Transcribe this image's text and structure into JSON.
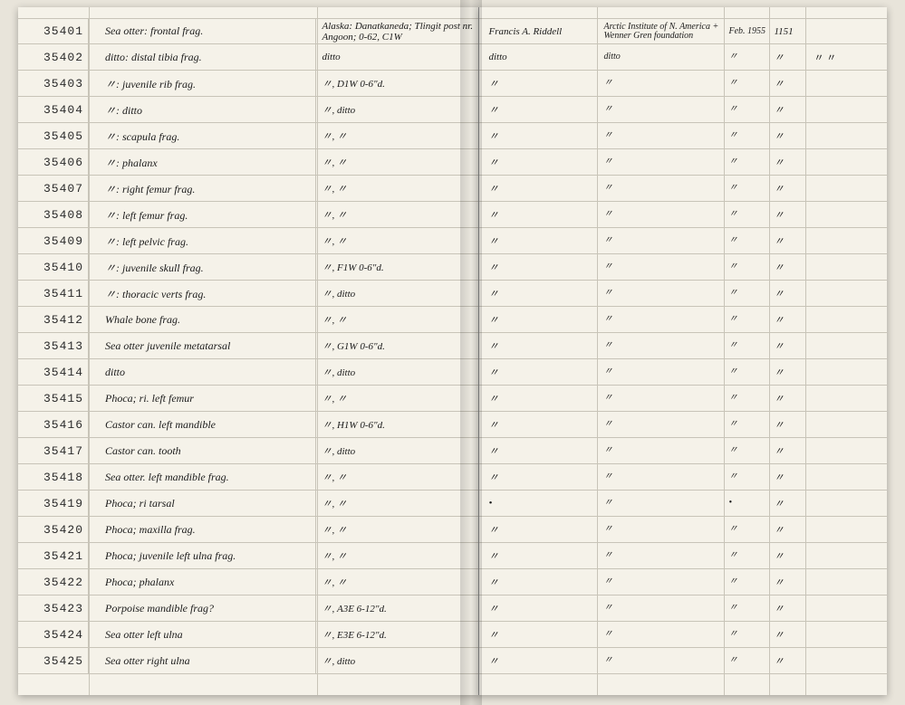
{
  "rows": [
    {
      "id": "35401",
      "desc": "Sea otter: frontal frag.",
      "loc": "Alaska: Danatkaneda; Tlingit post nr. Angoon; 0-62, C1W",
      "collector": "Francis A. Riddell",
      "inst": "Arctic Institute of N. America + Wenner Gren foundation",
      "date": "Feb. 1955",
      "num": "1151",
      "end": ""
    },
    {
      "id": "35402",
      "desc": "ditto: distal tibia frag.",
      "loc": "ditto",
      "collector": "ditto",
      "inst": "ditto",
      "date": "〃",
      "num": "〃",
      "end": "〃 〃"
    },
    {
      "id": "35403",
      "desc": "〃: juvenile rib frag.",
      "loc": "〃, D1W  0-6\"d.",
      "collector": "〃",
      "inst": "〃",
      "date": "〃",
      "num": "〃",
      "end": ""
    },
    {
      "id": "35404",
      "desc": "〃: ditto",
      "loc": "〃, ditto",
      "collector": "〃",
      "inst": "〃",
      "date": "〃",
      "num": "〃",
      "end": ""
    },
    {
      "id": "35405",
      "desc": "〃: scapula frag.",
      "loc": "〃, 〃",
      "collector": "〃",
      "inst": "〃",
      "date": "〃",
      "num": "〃",
      "end": ""
    },
    {
      "id": "35406",
      "desc": "〃: phalanx",
      "loc": "〃, 〃",
      "collector": "〃",
      "inst": "〃",
      "date": "〃",
      "num": "〃",
      "end": ""
    },
    {
      "id": "35407",
      "desc": "〃: right femur frag.",
      "loc": "〃, 〃",
      "collector": "〃",
      "inst": "〃",
      "date": "〃",
      "num": "〃",
      "end": ""
    },
    {
      "id": "35408",
      "desc": "〃: left femur frag.",
      "loc": "〃, 〃",
      "collector": "〃",
      "inst": "〃",
      "date": "〃",
      "num": "〃",
      "end": ""
    },
    {
      "id": "35409",
      "desc": "〃: left pelvic frag.",
      "loc": "〃, 〃",
      "collector": "〃",
      "inst": "〃",
      "date": "〃",
      "num": "〃",
      "end": ""
    },
    {
      "id": "35410",
      "desc": "〃: juvenile skull frag.",
      "loc": "〃, F1W  0-6\"d.",
      "collector": "〃",
      "inst": "〃",
      "date": "〃",
      "num": "〃",
      "end": ""
    },
    {
      "id": "35411",
      "desc": "〃: thoracic verts frag.",
      "loc": "〃, ditto",
      "collector": "〃",
      "inst": "〃",
      "date": "〃",
      "num": "〃",
      "end": ""
    },
    {
      "id": "35412",
      "desc": "Whale bone frag.",
      "loc": "〃, 〃",
      "collector": "〃",
      "inst": "〃",
      "date": "〃",
      "num": "〃",
      "end": ""
    },
    {
      "id": "35413",
      "desc": "Sea otter juvenile metatarsal",
      "loc": "〃, G1W  0-6\"d.",
      "collector": "〃",
      "inst": "〃",
      "date": "〃",
      "num": "〃",
      "end": ""
    },
    {
      "id": "35414",
      "desc": "ditto",
      "loc": "〃, ditto",
      "collector": "〃",
      "inst": "〃",
      "date": "〃",
      "num": "〃",
      "end": ""
    },
    {
      "id": "35415",
      "desc": "Phoca; ri. left femur",
      "loc": "〃, 〃",
      "collector": "〃",
      "inst": "〃",
      "date": "〃",
      "num": "〃",
      "end": ""
    },
    {
      "id": "35416",
      "desc": "Castor can. left mandible",
      "loc": "〃, H1W  0-6\"d.",
      "collector": "〃",
      "inst": "〃",
      "date": "〃",
      "num": "〃",
      "end": ""
    },
    {
      "id": "35417",
      "desc": "Castor can. tooth",
      "loc": "〃, ditto",
      "collector": "〃",
      "inst": "〃",
      "date": "〃",
      "num": "〃",
      "end": ""
    },
    {
      "id": "35418",
      "desc": "Sea otter. left mandible frag.",
      "loc": "〃, 〃",
      "collector": "〃",
      "inst": "〃",
      "date": "〃",
      "num": "〃",
      "end": ""
    },
    {
      "id": "35419",
      "desc": "Phoca; ri tarsal",
      "loc": "〃, 〃",
      "collector": "•",
      "inst": "〃",
      "date": "•",
      "num": "〃",
      "end": ""
    },
    {
      "id": "35420",
      "desc": "Phoca; maxilla frag.",
      "loc": "〃, 〃",
      "collector": "〃",
      "inst": "〃",
      "date": "〃",
      "num": "〃",
      "end": ""
    },
    {
      "id": "35421",
      "desc": "Phoca; juvenile left ulna frag.",
      "loc": "〃, 〃",
      "collector": "〃",
      "inst": "〃",
      "date": "〃",
      "num": "〃",
      "end": ""
    },
    {
      "id": "35422",
      "desc": "Phoca; phalanx",
      "loc": "〃, 〃",
      "collector": "〃",
      "inst": "〃",
      "date": "〃",
      "num": "〃",
      "end": ""
    },
    {
      "id": "35423",
      "desc": "Porpoise mandible frag?",
      "loc": "〃, A3E  6-12\"d.",
      "collector": "〃",
      "inst": "〃",
      "date": "〃",
      "num": "〃",
      "end": ""
    },
    {
      "id": "35424",
      "desc": "Sea otter left ulna",
      "loc": "〃, E3E  6-12\"d.",
      "collector": "〃",
      "inst": "〃",
      "date": "〃",
      "num": "〃",
      "end": ""
    },
    {
      "id": "35425",
      "desc": "Sea otter right ulna",
      "loc": "〃, ditto",
      "collector": "〃",
      "inst": "〃",
      "date": "〃",
      "num": "〃",
      "end": ""
    }
  ],
  "colors": {
    "paper": "#f5f2e9",
    "rule": "#c8c4b8",
    "ink": "#1a1a1a",
    "typed": "#2a2a2a",
    "bg": "#e8e4da"
  }
}
